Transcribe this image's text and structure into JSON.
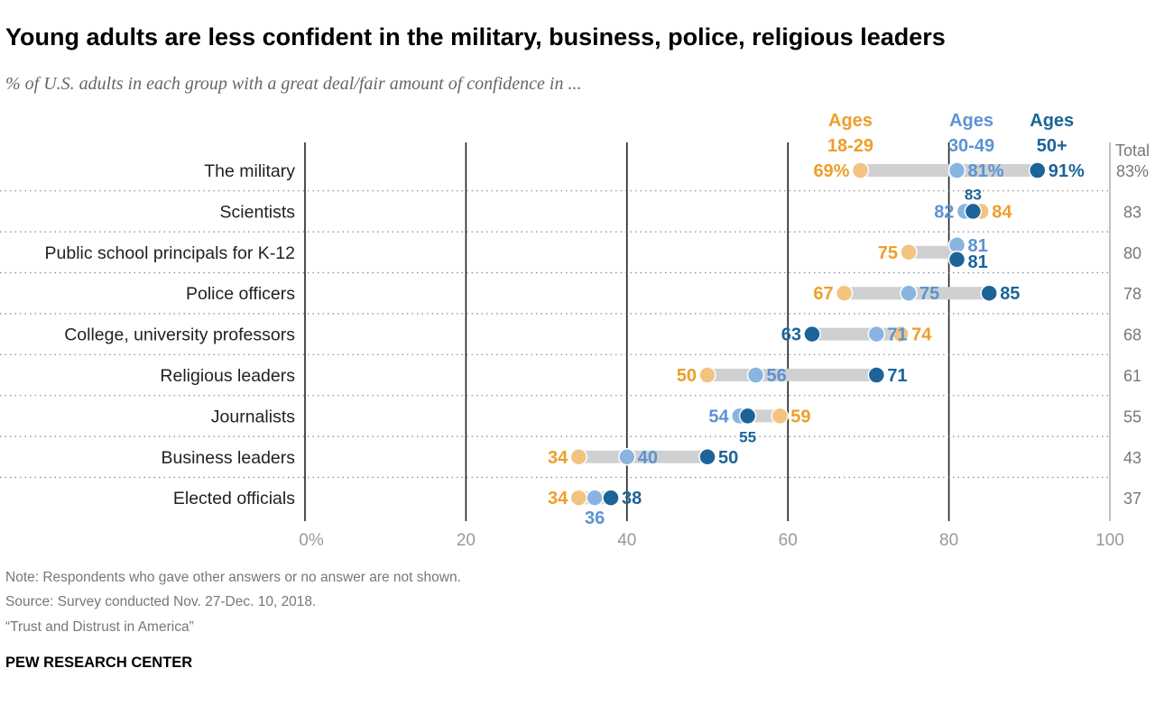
{
  "chart_data": {
    "type": "dot-plot",
    "title": "Young adults are less confident in the military, business, police, religious leaders",
    "subtitle": "% of U.S. adults in each group with a great deal/fair amount of confidence in ...",
    "xlim": [
      0,
      100
    ],
    "ticks": [
      0,
      20,
      40,
      60,
      80,
      100
    ],
    "tick_labels": [
      "0%",
      "20",
      "40",
      "60",
      "80",
      "100"
    ],
    "grid": true,
    "total_header": "Total",
    "categories": [
      "The military",
      "Scientists",
      "Public school principals for K-12",
      "Police officers",
      "College, university professors",
      "Religious leaders",
      "Journalists",
      "Business leaders",
      "Elected officials"
    ],
    "series": [
      {
        "name": "Ages 18-29",
        "label_lines": [
          "Ages",
          "18-29"
        ],
        "color": "#EE9E2B",
        "dot_color": "#F2C480",
        "values": [
          69,
          84,
          75,
          67,
          74,
          50,
          59,
          34,
          34
        ]
      },
      {
        "name": "Ages 30-49",
        "label_lines": [
          "Ages",
          "30-49"
        ],
        "color": "#5B93D2",
        "dot_color": "#8AB4E0",
        "values": [
          81,
          82,
          81,
          75,
          71,
          56,
          54,
          40,
          36
        ]
      },
      {
        "name": "Ages 50+",
        "label_lines": [
          "Ages",
          "50+"
        ],
        "color": "#1C6498",
        "dot_color": "#1C6498",
        "values": [
          91,
          83,
          81,
          85,
          63,
          71,
          55,
          50,
          38
        ]
      }
    ],
    "totals": [
      "83%",
      "83",
      "80",
      "78",
      "68",
      "61",
      "55",
      "43",
      "37"
    ],
    "first_row_value_suffix": "%",
    "range_bar_color": "#CFD0D2"
  },
  "footer": {
    "note": "Note: Respondents who gave other answers or no answer are not shown.",
    "source": "Source: Survey conducted Nov. 27-Dec. 10, 2018.",
    "report": "“Trust and Distrust in America”",
    "brand": "PEW RESEARCH CENTER"
  }
}
